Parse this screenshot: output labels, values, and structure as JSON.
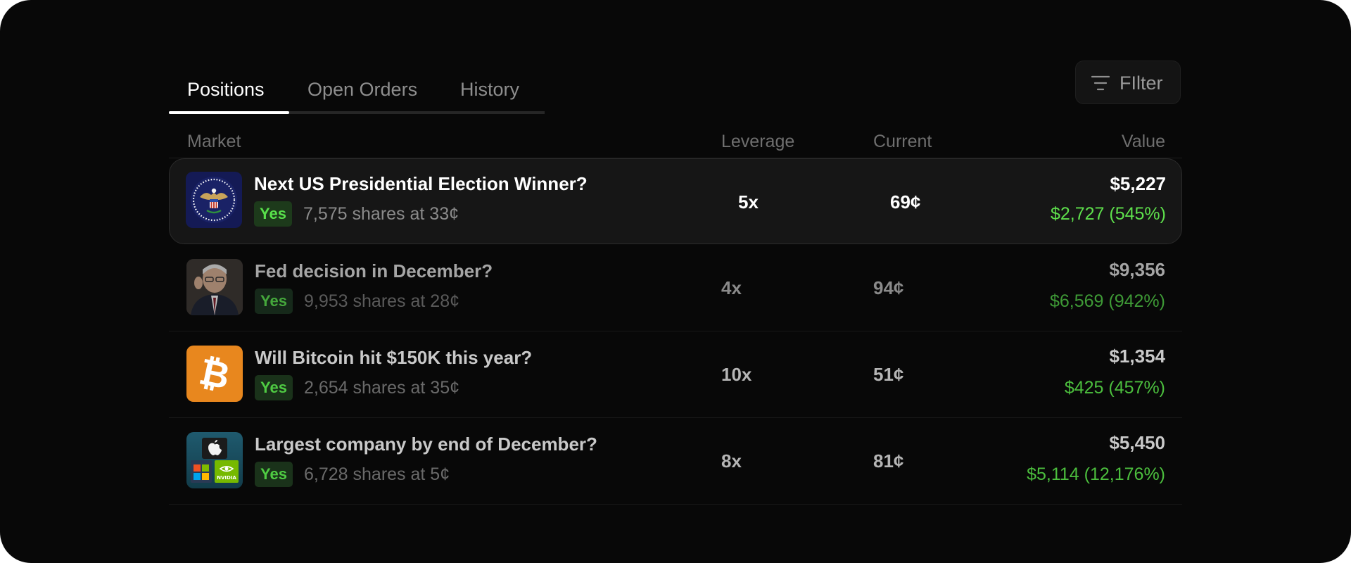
{
  "tabs": [
    {
      "label": "Positions",
      "active": true
    },
    {
      "label": "Open Orders",
      "active": false
    },
    {
      "label": "History",
      "active": false
    }
  ],
  "filter": {
    "label": "FIlter",
    "icon": "filter-icon"
  },
  "columns": {
    "market": "Market",
    "leverage": "Leverage",
    "current": "Current",
    "value": "Value"
  },
  "positions": [
    {
      "title": "Next US Presidential Election Winner?",
      "outcome": "Yes",
      "shares": "7,575 shares at 33¢",
      "leverage": "5x",
      "current": "69¢",
      "value": "$5,227",
      "pnl": "$2,727 (545%)",
      "icon": "presidential-seal-icon"
    },
    {
      "title": "Fed decision in December?",
      "outcome": "Yes",
      "shares": "9,953 shares at 28¢",
      "leverage": "4x",
      "current": "94¢",
      "value": "$9,356",
      "pnl": "$6,569 (942%)",
      "icon": "fed-chair-photo-icon"
    },
    {
      "title": "Will Bitcoin hit $150K this year?",
      "outcome": "Yes",
      "shares": "2,654 shares at 35¢",
      "leverage": "10x",
      "current": "51¢",
      "value": "$1,354",
      "pnl": "$425 (457%)",
      "icon": "bitcoin-icon"
    },
    {
      "title": "Largest company by end of December?",
      "outcome": "Yes",
      "shares": "6,728 shares at 5¢",
      "leverage": "8x",
      "current": "81¢",
      "value": "$5,450",
      "pnl": "$5,114 (12,176%)",
      "icon": "company-logos-icon",
      "logo_text": "NVIDIA"
    }
  ],
  "colors": {
    "background": "#080808",
    "positive": "#5ee04c",
    "badge_bg": "#1d3a1b",
    "bitcoin": "#e8871e",
    "seal_navy": "#141a55"
  }
}
